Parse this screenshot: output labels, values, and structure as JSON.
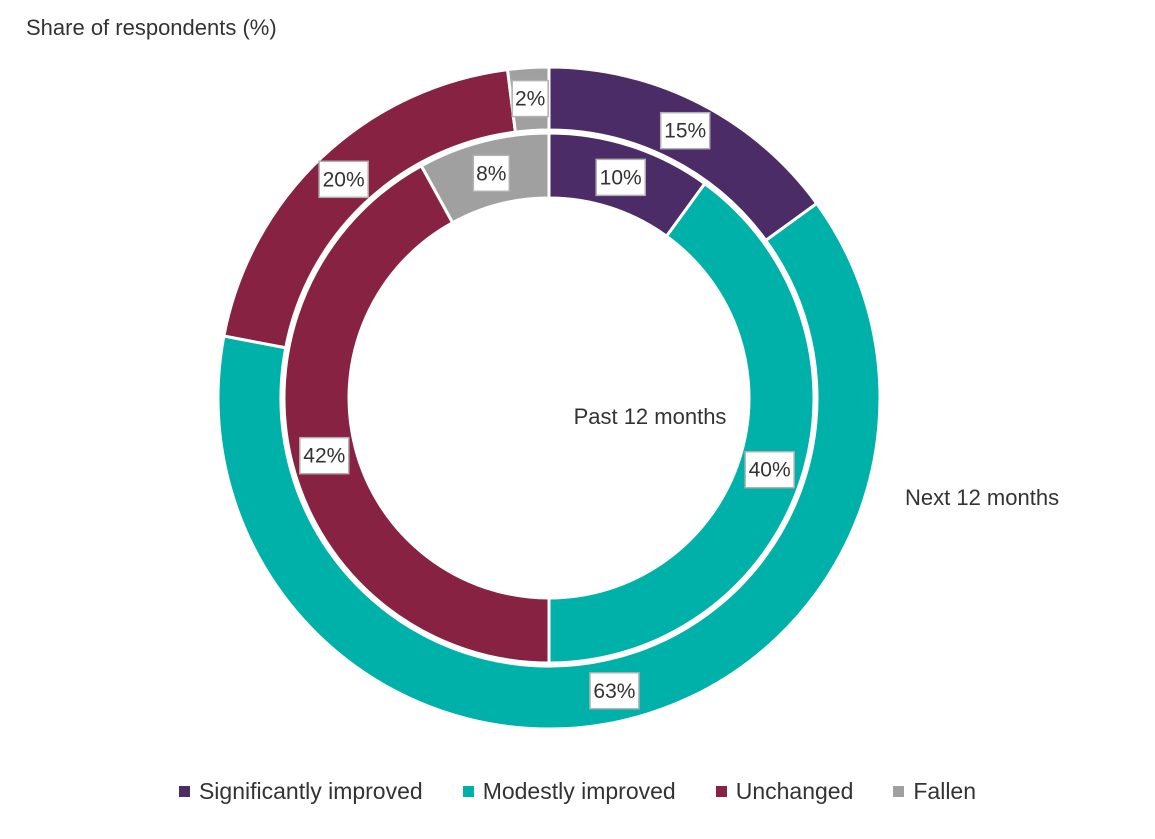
{
  "chart_data": {
    "type": "donut",
    "subtitle": "Share of respondents (%)",
    "categories": [
      "Significantly improved",
      "Modestly improved",
      "Unchanged",
      "Fallen"
    ],
    "colors": [
      "#4b2c67",
      "#00b1a9",
      "#872242",
      "#a0a0a0"
    ],
    "series": [
      {
        "name": "Next 12 months",
        "ring": "outer",
        "values": [
          15,
          63,
          20,
          2
        ],
        "labels": [
          "15%",
          "63%",
          "20%",
          "2%"
        ]
      },
      {
        "name": "Past 12 months",
        "ring": "inner",
        "values": [
          10,
          40,
          42,
          8
        ],
        "labels": [
          "10%",
          "40%",
          "42%",
          "8%"
        ]
      }
    ],
    "legend_position": "bottom"
  }
}
